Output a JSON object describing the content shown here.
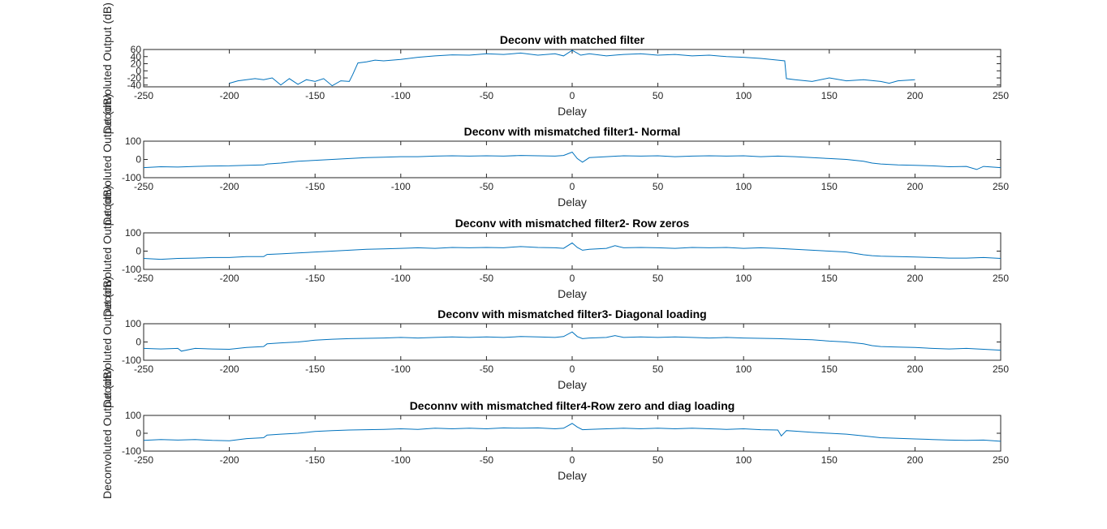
{
  "chart_data": [
    {
      "type": "line",
      "title": "Deconv with matched filter",
      "xlabel": "Delay",
      "ylabel": "Deconvoluted Output (dB)",
      "xlim": [
        -250,
        250
      ],
      "ylim": [
        -45,
        60
      ],
      "xticks": [
        -250,
        -200,
        -150,
        -100,
        -50,
        0,
        50,
        100,
        150,
        200,
        250
      ],
      "yticks": [
        60,
        40,
        20,
        0,
        -20,
        -40
      ],
      "line_color": "#0072BD",
      "series": [
        {
          "x": [
            -200,
            -195,
            -190,
            -185,
            -180,
            -175,
            -170,
            -165,
            -160,
            -155,
            -150,
            -145,
            -140,
            -135,
            -130,
            -128,
            -125,
            -120,
            -115,
            -110,
            -100,
            -90,
            -80,
            -70,
            -60,
            -50,
            -40,
            -30,
            -20,
            -10,
            -5,
            0,
            5,
            10,
            20,
            30,
            40,
            50,
            60,
            70,
            80,
            90,
            100,
            110,
            120,
            124,
            125,
            130,
            140,
            150,
            160,
            170,
            180,
            185,
            190,
            200
          ],
          "y": [
            -35,
            -28,
            -25,
            -22,
            -25,
            -20,
            -40,
            -22,
            -38,
            -25,
            -30,
            -22,
            -42,
            -28,
            -30,
            -10,
            22,
            25,
            30,
            28,
            32,
            38,
            42,
            45,
            44,
            48,
            46,
            50,
            44,
            48,
            42,
            58,
            44,
            48,
            42,
            46,
            48,
            44,
            46,
            42,
            44,
            40,
            38,
            35,
            30,
            28,
            -22,
            -25,
            -30,
            -20,
            -28,
            -25,
            -30,
            -35,
            -28,
            -25
          ]
        }
      ]
    },
    {
      "type": "line",
      "title": "Deconv with mismatched filter1- Normal",
      "xlabel": "Delay",
      "ylabel": "Deconvoluted Output (dB)",
      "xlim": [
        -250,
        250
      ],
      "ylim": [
        -100,
        100
      ],
      "xticks": [
        -250,
        -200,
        -150,
        -100,
        -50,
        0,
        50,
        100,
        150,
        200,
        250
      ],
      "yticks": [
        100,
        0,
        -100
      ],
      "line_color": "#0072BD",
      "series": [
        {
          "x": [
            -250,
            -240,
            -230,
            -220,
            -210,
            -200,
            -190,
            -180,
            -178,
            -170,
            -160,
            -150,
            -140,
            -130,
            -120,
            -110,
            -100,
            -90,
            -80,
            -70,
            -60,
            -50,
            -40,
            -30,
            -20,
            -10,
            -5,
            0,
            3,
            6,
            10,
            20,
            30,
            40,
            50,
            60,
            70,
            80,
            90,
            100,
            110,
            120,
            130,
            140,
            150,
            160,
            170,
            175,
            180,
            190,
            200,
            210,
            220,
            230,
            236,
            240,
            250
          ],
          "y": [
            -45,
            -40,
            -42,
            -38,
            -36,
            -35,
            -32,
            -30,
            -25,
            -20,
            -10,
            -5,
            0,
            5,
            10,
            12,
            15,
            15,
            18,
            20,
            18,
            20,
            18,
            22,
            20,
            18,
            22,
            40,
            5,
            -15,
            10,
            15,
            20,
            18,
            20,
            15,
            18,
            20,
            18,
            20,
            15,
            18,
            15,
            10,
            5,
            0,
            -10,
            -20,
            -25,
            -30,
            -32,
            -35,
            -40,
            -38,
            -55,
            -38,
            -45
          ]
        }
      ]
    },
    {
      "type": "line",
      "title": "Deconv with mismatched filter2- Row zeros",
      "xlabel": "Delay",
      "ylabel": "Deconvoluted Output (dB)",
      "xlim": [
        -250,
        250
      ],
      "ylim": [
        -100,
        100
      ],
      "xticks": [
        -250,
        -200,
        -150,
        -100,
        -50,
        0,
        50,
        100,
        150,
        200,
        250
      ],
      "yticks": [
        100,
        0,
        -100
      ],
      "line_color": "#0072BD",
      "series": [
        {
          "x": [
            -250,
            -240,
            -230,
            -220,
            -210,
            -200,
            -190,
            -180,
            -178,
            -170,
            -160,
            -150,
            -140,
            -130,
            -120,
            -110,
            -100,
            -90,
            -80,
            -70,
            -60,
            -50,
            -40,
            -30,
            -20,
            -10,
            -5,
            0,
            3,
            6,
            10,
            20,
            25,
            30,
            40,
            50,
            60,
            70,
            80,
            90,
            100,
            110,
            120,
            130,
            140,
            150,
            160,
            170,
            175,
            180,
            190,
            200,
            210,
            220,
            230,
            240,
            250
          ],
          "y": [
            -40,
            -45,
            -40,
            -38,
            -35,
            -35,
            -30,
            -30,
            -18,
            -15,
            -10,
            -5,
            0,
            5,
            10,
            12,
            15,
            18,
            15,
            20,
            18,
            20,
            18,
            25,
            20,
            18,
            15,
            45,
            20,
            5,
            10,
            15,
            30,
            18,
            20,
            18,
            15,
            20,
            18,
            20,
            15,
            18,
            15,
            10,
            5,
            0,
            -5,
            -20,
            -25,
            -28,
            -30,
            -32,
            -35,
            -38,
            -38,
            -35,
            -40
          ]
        }
      ]
    },
    {
      "type": "line",
      "title": "Deconv with mismatched filter3- Diagonal loading",
      "xlabel": "Delay",
      "ylabel": "Deconvoluted Output (dB)",
      "xlim": [
        -250,
        250
      ],
      "ylim": [
        -100,
        100
      ],
      "xticks": [
        -250,
        -200,
        -150,
        -100,
        -50,
        0,
        50,
        100,
        150,
        200,
        250
      ],
      "yticks": [
        100,
        0,
        -100
      ],
      "line_color": "#0072BD",
      "series": [
        {
          "x": [
            -250,
            -240,
            -230,
            -228,
            -220,
            -210,
            -200,
            -190,
            -180,
            -178,
            -170,
            -160,
            -150,
            -140,
            -130,
            -120,
            -110,
            -100,
            -90,
            -80,
            -70,
            -60,
            -50,
            -40,
            -30,
            -20,
            -10,
            -5,
            0,
            3,
            6,
            10,
            20,
            25,
            30,
            40,
            50,
            60,
            70,
            80,
            90,
            100,
            110,
            120,
            130,
            140,
            150,
            160,
            170,
            175,
            180,
            190,
            200,
            210,
            220,
            230,
            240,
            250
          ],
          "y": [
            -35,
            -38,
            -35,
            -50,
            -35,
            -38,
            -40,
            -30,
            -25,
            -10,
            -5,
            0,
            10,
            15,
            18,
            20,
            22,
            25,
            22,
            25,
            28,
            25,
            28,
            25,
            30,
            28,
            25,
            30,
            55,
            30,
            18,
            22,
            25,
            35,
            25,
            28,
            25,
            28,
            25,
            22,
            25,
            22,
            20,
            18,
            15,
            12,
            5,
            0,
            -10,
            -20,
            -25,
            -28,
            -30,
            -35,
            -38,
            -35,
            -40,
            -45
          ]
        }
      ]
    },
    {
      "type": "line",
      "title": "Deconnv with mismatched filter4-Row zero and diag  loading",
      "xlabel": "Delay",
      "ylabel": "Deconvoluted Output (dB)",
      "xlim": [
        -250,
        250
      ],
      "ylim": [
        -100,
        100
      ],
      "xticks": [
        -250,
        -200,
        -150,
        -100,
        -50,
        0,
        50,
        100,
        150,
        200,
        250
      ],
      "yticks": [
        100,
        0,
        -100
      ],
      "line_color": "#0072BD",
      "series": [
        {
          "x": [
            -250,
            -240,
            -230,
            -220,
            -210,
            -200,
            -190,
            -180,
            -178,
            -170,
            -160,
            -150,
            -140,
            -130,
            -120,
            -110,
            -100,
            -90,
            -80,
            -70,
            -60,
            -50,
            -40,
            -30,
            -20,
            -10,
            -5,
            0,
            3,
            6,
            10,
            20,
            30,
            40,
            50,
            60,
            70,
            80,
            90,
            100,
            110,
            120,
            122,
            125,
            130,
            140,
            150,
            160,
            170,
            175,
            180,
            190,
            200,
            210,
            220,
            230,
            240,
            250
          ],
          "y": [
            -40,
            -35,
            -38,
            -35,
            -40,
            -42,
            -30,
            -25,
            -10,
            -5,
            0,
            10,
            15,
            18,
            20,
            22,
            25,
            22,
            28,
            25,
            28,
            25,
            30,
            28,
            30,
            25,
            28,
            55,
            35,
            20,
            22,
            25,
            28,
            25,
            28,
            25,
            28,
            25,
            22,
            25,
            20,
            18,
            -15,
            15,
            12,
            5,
            0,
            -5,
            -15,
            -20,
            -25,
            -28,
            -32,
            -35,
            -38,
            -40,
            -38,
            -45
          ]
        }
      ]
    }
  ]
}
